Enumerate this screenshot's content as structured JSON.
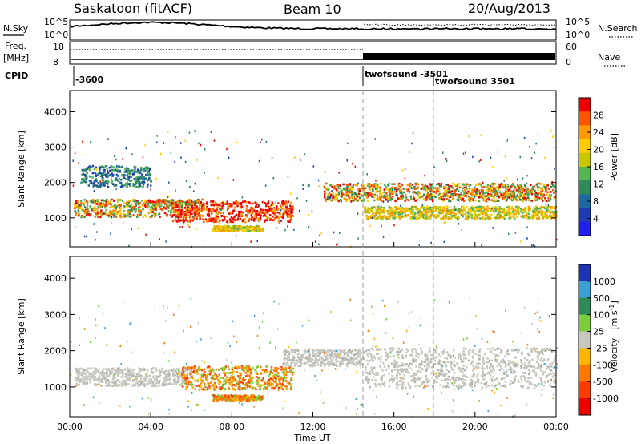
{
  "header": {
    "radar": "Saskatoon (fitACF)",
    "beam": "Beam 10",
    "date": "20/Aug/2013"
  },
  "noise_panel": {
    "left_label": "N.Sky",
    "right_label": "N.Search",
    "left_ticks": [
      "10^5",
      "10^0"
    ],
    "right_ticks": [
      "10^5",
      "10^0"
    ]
  },
  "freq_panel": {
    "left_label": "Freq.",
    "left_unit": "[MHz]",
    "right_label": "Nave",
    "left_ticks": [
      "18",
      "8"
    ],
    "right_ticks": [
      "60",
      "0"
    ]
  },
  "cpid_panel": {
    "label": "CPID",
    "entries": [
      "-3600",
      "twofsound -3501",
      "twofsound 3501"
    ]
  },
  "chart_data": [
    {
      "type": "heatmap",
      "name": "power",
      "ylabel": "Slant Range [km]",
      "yticks": [
        1000,
        2000,
        3000,
        4000
      ],
      "ylim": [
        180,
        4600
      ],
      "xlim": [
        0,
        24
      ],
      "colorbar": {
        "label": "Power [dB]",
        "ticks": [
          "28",
          "24",
          "20",
          "16",
          "12",
          "8",
          "4"
        ],
        "colors": [
          "#ee0000",
          "#ff5500",
          "#ff9900",
          "#ffcc00",
          "#c8c800",
          "#55b555",
          "#2e8b57",
          "#1e6aa0",
          "#1e3cb4",
          "#2020ee"
        ]
      },
      "echo_bands": [
        {
          "t0": 0.2,
          "t1": 6.5,
          "r0": 1050,
          "r1": 1550,
          "level": "high"
        },
        {
          "t0": 5.0,
          "t1": 11.0,
          "r0": 900,
          "r1": 1500,
          "level": "max"
        },
        {
          "t0": 12.5,
          "t1": 14.5,
          "r0": 1500,
          "r1": 2000,
          "level": "high"
        },
        {
          "t0": 14.5,
          "t1": 24.0,
          "r0": 1500,
          "r1": 2000,
          "level": "high"
        },
        {
          "t0": 14.5,
          "t1": 24.0,
          "r0": 1000,
          "r1": 1350,
          "level": "medium"
        },
        {
          "t0": 0.5,
          "t1": 4.0,
          "r0": 1900,
          "r1": 2500,
          "level": "low"
        },
        {
          "t0": 7.0,
          "t1": 9.5,
          "r0": 650,
          "r1": 800,
          "level": "medium"
        }
      ]
    },
    {
      "type": "heatmap",
      "name": "velocity",
      "ylabel": "Slant Range [km]",
      "xlabel": "Time UT",
      "yticks": [
        1000,
        2000,
        3000,
        4000
      ],
      "ylim": [
        180,
        4600
      ],
      "xlim": [
        0,
        24
      ],
      "xticks": [
        "00:00",
        "04:00",
        "08:00",
        "12:00",
        "16:00",
        "20:00",
        "00:00"
      ],
      "colorbar": {
        "label": "Velocity",
        "unit": "[m s",
        "unit_exp": "-1",
        "unit_close": "]",
        "ticks": [
          "1000",
          "500",
          "100",
          "25",
          "-25",
          "-100",
          "-500",
          "-1000"
        ],
        "colors": [
          "#1e32b4",
          "#3ca0d2",
          "#2e8b57",
          "#7ccd3c",
          "#c8c8c0",
          "#ffb400",
          "#ff7800",
          "#ff3c00",
          "#ee0000"
        ]
      },
      "echo_bands": [
        {
          "t0": 0.2,
          "t1": 6.0,
          "r0": 1050,
          "r1": 1550,
          "level": "ground"
        },
        {
          "t0": 5.5,
          "t1": 11.0,
          "r0": 950,
          "r1": 1600,
          "level": "negative"
        },
        {
          "t0": 10.5,
          "t1": 14.5,
          "r0": 1600,
          "r1": 2050,
          "level": "ground"
        },
        {
          "t0": 14.5,
          "t1": 24.0,
          "r0": 1000,
          "r1": 2100,
          "level": "ground"
        },
        {
          "t0": 7.0,
          "t1": 9.5,
          "r0": 650,
          "r1": 800,
          "level": "negative"
        }
      ]
    }
  ]
}
